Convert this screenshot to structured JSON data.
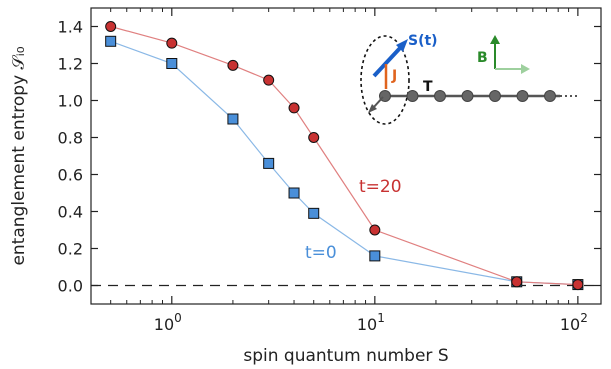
{
  "chart_data": {
    "type": "line",
    "x_scale": "log",
    "xlim": [
      0.4,
      130
    ],
    "ylim": [
      -0.1,
      1.5
    ],
    "xlabel": "spin quantum number S",
    "ylabel": "entanglement entropy 𝒮ᵢ₀",
    "x_tick_labels": [
      {
        "value": 1,
        "base": "10",
        "exp": "0"
      },
      {
        "value": 10,
        "base": "10",
        "exp": "1"
      },
      {
        "value": 100,
        "base": "10",
        "exp": "2"
      }
    ],
    "y_ticks": [
      0.0,
      0.2,
      0.4,
      0.6,
      0.8,
      1.0,
      1.2,
      1.4
    ],
    "y_tick_labels": [
      "0.0",
      "0.2",
      "0.4",
      "0.6",
      "0.8",
      "1.0",
      "1.2",
      "1.4"
    ],
    "reference_line": {
      "y": 0.0,
      "style": "dashed"
    },
    "series": [
      {
        "name": "t=0",
        "color": "#4a8fd9",
        "line_color": "#8ab8e6",
        "marker": "square",
        "x": [
          0.5,
          1,
          2,
          3,
          4,
          5,
          10,
          50,
          100
        ],
        "y": [
          1.32,
          1.2,
          0.9,
          0.66,
          0.5,
          0.39,
          0.16,
          0.02,
          0.005
        ]
      },
      {
        "name": "t=20",
        "color": "#c83232",
        "line_color": "#e08080",
        "marker": "circle",
        "x": [
          0.5,
          1,
          2,
          3,
          4,
          5,
          10,
          50,
          100
        ],
        "y": [
          1.4,
          1.31,
          1.19,
          1.11,
          0.96,
          0.8,
          0.3,
          0.02,
          0.005
        ]
      }
    ]
  },
  "inset": {
    "spin_label": "S(t)",
    "coupling_label": "J",
    "hopping_label": "T",
    "field_label": "B",
    "colors": {
      "spin": "#1a5fc8",
      "coupling": "#e0641e",
      "field": "#2a8a2a",
      "chain": "#555555"
    }
  }
}
